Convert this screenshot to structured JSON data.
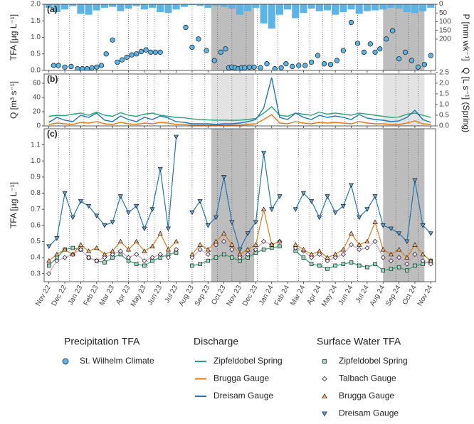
{
  "chart_data": [
    {
      "type": "scatter",
      "label": "(a)",
      "ylabel": "TFA [µg L⁻¹]",
      "y2label": "P [mm wk⁻¹]",
      "ylim": [
        0,
        2
      ],
      "yticks": [
        {
          "value": 0,
          "label": "0.0"
        },
        0.5,
        {
          "value": 1,
          "label": "1.0"
        },
        1.5,
        {
          "value": 2,
          "label": "2.0"
        }
      ],
      "y2lim": [
        380,
        0
      ],
      "y2ticks": [
        0,
        50,
        100,
        150,
        200
      ],
      "shaded": [
        [
          10.2,
          12.9
        ],
        [
          21.0,
          23.6
        ]
      ],
      "shade_color": "#bdbdbd",
      "event_lines": [
        0.6,
        1.3,
        2.2,
        3.1,
        4.3,
        5.0,
        5.6,
        6.2,
        6.6,
        7.5,
        9.0,
        9.8,
        10.6,
        11.5,
        12.4,
        13.1,
        14.4,
        15.7,
        16.4,
        17.2,
        17.8,
        18.6,
        19.4,
        20.6,
        21.8,
        22.6,
        23.2
      ],
      "legend_title": "Precipitation TFA",
      "bars": {
        "axis": "y2",
        "color": "#5ab4e5",
        "x": [
          0,
          0.5,
          1,
          1.5,
          2,
          2.5,
          3,
          3.5,
          4,
          4.5,
          5,
          5.5,
          6,
          6.5,
          7,
          7.5,
          8,
          8.5,
          9,
          9.5,
          10,
          10.5,
          11,
          11.5,
          12,
          12.5,
          13,
          13.5,
          14,
          14.5,
          15,
          15.5,
          16,
          16.5,
          17,
          17.5,
          18,
          18.5,
          19,
          19.5,
          20,
          20.5,
          21,
          21.5,
          22,
          22.5,
          23,
          23.5,
          24
        ],
        "values": [
          20,
          45,
          30,
          10,
          55,
          60,
          35,
          20,
          15,
          40,
          25,
          10,
          30,
          20,
          45,
          50,
          30,
          15,
          5,
          10,
          20,
          8,
          15,
          25,
          60,
          40,
          20,
          110,
          140,
          60,
          30,
          80,
          50,
          25,
          40,
          35,
          60,
          45,
          30,
          55,
          40,
          35,
          30,
          20,
          25,
          45,
          50,
          40,
          20
        ]
      },
      "series": [
        {
          "name": "St. Wilhelm Climate",
          "color": "#5ab4e5",
          "marker": "circle",
          "x": [
            0.3,
            0.6,
            1.0,
            1.4,
            1.8,
            2.1,
            2.4,
            2.7,
            3.0,
            3.3,
            3.6,
            4.0,
            4.3,
            4.6,
            4.9,
            5.2,
            5.5,
            5.8,
            6.1,
            6.4,
            6.7,
            7.0,
            8.6,
            9.0,
            9.4,
            9.9,
            10.4,
            10.8,
            11.1,
            11.3,
            11.5,
            11.7,
            11.9,
            12.1,
            12.3,
            12.6,
            12.9,
            13.3,
            13.7,
            14.2,
            14.6,
            14.9,
            15.3,
            15.7,
            16.1,
            16.5,
            16.9,
            17.3,
            17.7,
            18.1,
            18.5,
            19.0,
            19.4,
            19.8,
            20.2,
            20.5,
            20.8,
            21.2,
            21.6,
            22.0,
            22.4,
            22.8,
            23.2,
            23.6,
            24.0
          ],
          "values": [
            0.15,
            0.15,
            0.1,
            0.12,
            0.05,
            0.05,
            0.05,
            0.08,
            0.1,
            0.15,
            0.5,
            0.92,
            0.25,
            0.32,
            0.4,
            0.47,
            0.5,
            0.57,
            0.62,
            0.55,
            0.55,
            0.55,
            1.3,
            0.7,
            0.95,
            0.6,
            0.3,
            0.55,
            0.65,
            0.08,
            0.1,
            0.08,
            0.05,
            0.08,
            0.08,
            0.1,
            0.1,
            0.08,
            0.2,
            0.05,
            0.08,
            0.2,
            0.12,
            0.15,
            0.15,
            0.25,
            0.45,
            0.2,
            0.18,
            0.3,
            0.6,
            1.45,
            0.82,
            0.55,
            0.8,
            0.55,
            0.65,
            0.95,
            1.2,
            0.35,
            0.55,
            0.3,
            0.1,
            0.18,
            0.45
          ]
        }
      ]
    },
    {
      "type": "line",
      "label": "(b)",
      "ylabel": "Q [m³ s⁻¹]",
      "y2label": "Q [L s⁻¹] (Spring)",
      "ylim": [
        0,
        73
      ],
      "yticks": [
        0,
        20,
        40,
        60
      ],
      "y2lim": [
        0,
        2.43
      ],
      "y2ticks": [
        {
          "value": 0,
          "label": "0.0"
        },
        0.5,
        {
          "value": 1,
          "label": "1.0"
        },
        1.5,
        {
          "value": 2,
          "label": "2.0"
        },
        2.5
      ],
      "shaded": [
        [
          10.2,
          12.9
        ],
        [
          21.0,
          23.6
        ]
      ],
      "shade_color": "#e3e3e3",
      "legend_title": "Discharge",
      "x": [
        0,
        0.5,
        1,
        1.5,
        2,
        2.5,
        3,
        3.5,
        4,
        4.5,
        5,
        5.5,
        6,
        6.5,
        7,
        7.5,
        8,
        8.5,
        9,
        9.5,
        10,
        10.5,
        11,
        11.5,
        12,
        12.5,
        13,
        13.5,
        14,
        14.5,
        15,
        15.5,
        16,
        16.5,
        17,
        17.5,
        18,
        18.5,
        19,
        19.5,
        20,
        20.5,
        21,
        21.5,
        22,
        22.5,
        23,
        23.5,
        24
      ],
      "series": [
        {
          "name": "Zipfeldobel Spring",
          "color": "#2aa57a",
          "axis": "y2",
          "values": [
            0.45,
            0.5,
            0.48,
            0.55,
            0.6,
            0.5,
            0.65,
            0.5,
            0.45,
            0.62,
            0.5,
            0.45,
            0.55,
            0.6,
            0.5,
            0.45,
            0.4,
            0.38,
            0.33,
            0.3,
            0.28,
            0.27,
            0.27,
            0.26,
            0.27,
            0.3,
            0.35,
            0.6,
            0.9,
            0.5,
            0.45,
            0.6,
            0.55,
            0.5,
            0.65,
            0.55,
            0.6,
            0.55,
            0.5,
            0.6,
            0.55,
            0.5,
            0.45,
            0.4,
            0.42,
            0.55,
            0.6,
            0.5,
            0.4
          ]
        },
        {
          "name": "Brugga Gauge",
          "color": "#e07b1a",
          "values": [
            2,
            4,
            3,
            2,
            5,
            4,
            6,
            3,
            2,
            5,
            3,
            2,
            4,
            3,
            5,
            4,
            2,
            2,
            1,
            1,
            1,
            1,
            1,
            1,
            1,
            2,
            3,
            9,
            16,
            4,
            3,
            6,
            4,
            3,
            5,
            4,
            5,
            4,
            3,
            6,
            4,
            3,
            3,
            2,
            2,
            4,
            7,
            3,
            2
          ]
        },
        {
          "name": "Dreisam Gauge",
          "color": "#1f78b4",
          "values": [
            5,
            12,
            8,
            6,
            15,
            12,
            18,
            8,
            6,
            14,
            9,
            6,
            12,
            9,
            14,
            11,
            6,
            5,
            3,
            3,
            3,
            2,
            3,
            3,
            4,
            6,
            9,
            25,
            68,
            12,
            9,
            18,
            12,
            9,
            15,
            12,
            14,
            12,
            9,
            16,
            11,
            9,
            8,
            6,
            7,
            12,
            22,
            9,
            5
          ]
        }
      ]
    },
    {
      "type": "line",
      "label": "(c)",
      "ylabel": "TFA [µg L⁻¹]",
      "ylim": [
        0.25,
        1.2
      ],
      "yticks": [
        0.3,
        0.4,
        0.5,
        0.6,
        0.7,
        0.8,
        0.9,
        {
          "value": 1,
          "label": "1.0"
        },
        1.1
      ],
      "shaded": [
        [
          10.2,
          12.9
        ],
        [
          21.0,
          23.6
        ]
      ],
      "shade_color": "#bdbdbd",
      "xlim": [
        -0.3,
        24.3
      ],
      "xticks": [
        {
          "value": 0,
          "label": "Nov 22"
        },
        {
          "value": 1,
          "label": "Dec 22"
        },
        {
          "value": 2,
          "label": "Jan 23"
        },
        {
          "value": 3,
          "label": "Feb 23"
        },
        {
          "value": 4,
          "label": "Mar 23"
        },
        {
          "value": 5,
          "label": "Apr 23"
        },
        {
          "value": 6,
          "label": "May 23"
        },
        {
          "value": 7,
          "label": "Jun 23"
        },
        {
          "value": 8,
          "label": "Jul 23"
        },
        {
          "value": 9,
          "label": "Aug 23"
        },
        {
          "value": 10,
          "label": "Sep 23"
        },
        {
          "value": 11,
          "label": "Oct 23"
        },
        {
          "value": 12,
          "label": "Nov 23"
        },
        {
          "value": 13,
          "label": "Dec 23"
        },
        {
          "value": 14,
          "label": "Jan 24"
        },
        {
          "value": 15,
          "label": "Feb 24"
        },
        {
          "value": 16,
          "label": "Mar 24"
        },
        {
          "value": 17,
          "label": "Apr 24"
        },
        {
          "value": 18,
          "label": "May 24"
        },
        {
          "value": 19,
          "label": "Jun 24"
        },
        {
          "value": 20,
          "label": "Jul 24"
        },
        {
          "value": 21,
          "label": "Aug 24"
        },
        {
          "value": 22,
          "label": "Sep 24"
        },
        {
          "value": 23,
          "label": "Oct 24"
        },
        {
          "value": 24,
          "label": "Nov 24"
        }
      ],
      "legend_title": "Surface Water TFA",
      "x": [
        0,
        0.5,
        1,
        1.5,
        2,
        2.5,
        3,
        3.5,
        4,
        4.5,
        5,
        5.5,
        6,
        6.5,
        7,
        7.5,
        8,
        8.5,
        9,
        9.5,
        10,
        10.5,
        11,
        11.5,
        12,
        12.5,
        13,
        13.5,
        14,
        14.5,
        15,
        15.5,
        16,
        16.5,
        17,
        17.5,
        18,
        18.5,
        19,
        19.5,
        20,
        20.5,
        21,
        21.5,
        22,
        22.5,
        23,
        23.5,
        24
      ],
      "series": [
        {
          "name": "Zipfeldobel Spring",
          "color": "#2aa57a",
          "fill": "#9fd9bd",
          "marker": "square",
          "values": [
            0.35,
            0.4,
            0.45,
            0.46,
            0.45,
            0.4,
            0.38,
            0.37,
            0.4,
            0.42,
            0.38,
            0.36,
            0.35,
            0.38,
            0.4,
            0.42,
            0.43,
            null,
            0.35,
            0.36,
            0.38,
            0.4,
            0.42,
            0.4,
            0.38,
            0.4,
            0.43,
            0.45,
            0.46,
            0.47,
            null,
            0.44,
            0.4,
            0.36,
            0.35,
            0.33,
            0.35,
            0.36,
            0.37,
            0.35,
            0.34,
            0.36,
            0.32,
            0.33,
            0.34,
            0.32,
            0.35,
            0.36,
            0.38
          ]
        },
        {
          "name": "Talbach Gauge",
          "color": "#c9a0c0",
          "fill": "#fbeef6",
          "marker": "diamond",
          "values": [
            0.3,
            0.38,
            0.4,
            0.42,
            0.45,
            0.4,
            0.38,
            0.4,
            0.42,
            0.44,
            0.4,
            0.42,
            0.38,
            0.4,
            0.42,
            0.4,
            0.45,
            null,
            0.4,
            0.45,
            0.42,
            0.48,
            0.5,
            0.45,
            0.4,
            0.42,
            0.45,
            0.5,
            0.48,
            0.5,
            null,
            0.46,
            0.44,
            0.4,
            0.42,
            0.38,
            0.4,
            0.42,
            0.48,
            0.45,
            0.46,
            0.5,
            0.4,
            0.38,
            0.4,
            0.36,
            0.42,
            0.38,
            0.36
          ]
        },
        {
          "name": "Brugga Gauge",
          "color": "#e07b1a",
          "fill": "#f7b877",
          "marker": "triangle-up",
          "values": [
            0.38,
            0.42,
            0.45,
            0.42,
            0.48,
            0.44,
            0.46,
            0.42,
            0.44,
            0.5,
            0.45,
            0.5,
            0.44,
            0.47,
            0.55,
            0.45,
            0.5,
            null,
            0.42,
            0.48,
            0.45,
            0.5,
            0.55,
            0.48,
            0.42,
            0.45,
            0.48,
            0.7,
            0.48,
            0.5,
            null,
            0.48,
            0.45,
            0.42,
            0.44,
            0.4,
            0.42,
            0.45,
            0.55,
            0.48,
            0.5,
            0.62,
            0.45,
            0.42,
            0.45,
            0.4,
            0.48,
            0.42,
            0.38
          ]
        },
        {
          "name": "Dreisam Gauge",
          "color": "#1f78b4",
          "fill": "#5fa3d6",
          "marker": "triangle-down",
          "values": [
            0.47,
            0.52,
            0.8,
            0.65,
            0.75,
            0.72,
            0.66,
            0.6,
            0.62,
            0.78,
            0.68,
            0.72,
            0.58,
            0.7,
            0.95,
            0.58,
            1.15,
            null,
            0.68,
            0.75,
            0.6,
            0.65,
            0.9,
            0.62,
            0.45,
            0.55,
            0.62,
            1.05,
            0.7,
            0.78,
            null,
            0.7,
            0.8,
            0.75,
            0.65,
            0.78,
            0.68,
            0.72,
            0.85,
            0.65,
            0.7,
            0.78,
            0.6,
            0.58,
            0.55,
            0.5,
            0.88,
            0.6,
            0.55
          ]
        }
      ]
    }
  ]
}
